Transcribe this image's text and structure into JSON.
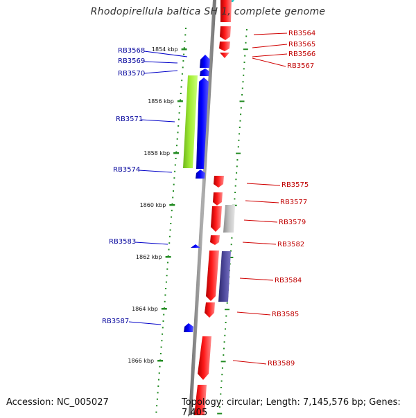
{
  "title": "Rhodopirellula baltica SH 1, complete genome",
  "footer": {
    "accession": "Accession: NC_005027",
    "summary": "Topology: circular; Length: 7,145,576 bp; Genes: 7,405"
  },
  "ruler": {
    "labels": [
      "1854 kbp",
      "1856 kbp",
      "1858 kbp",
      "1860 kbp",
      "1862 kbp",
      "1864 kbp",
      "1866 kbp"
    ]
  },
  "genes_left": [
    "RB3568",
    "RB3569",
    "RB3570",
    "RB3571",
    "RB3574",
    "RB3583",
    "RB3587"
  ],
  "genes_right": [
    "RB3564",
    "RB3565",
    "RB3566",
    "RB3567",
    "RB3575",
    "RB3577",
    "RB3579",
    "RB3582",
    "RB3584",
    "RB3585",
    "RB3589"
  ],
  "colors": {
    "reverse_strand_label": "#00009b",
    "forward_strand_label": "#c00000",
    "reverse_feature": "#0000ff",
    "forward_feature": "#ff0000",
    "lime_feature": "#9ae62a",
    "grey_feature": "#bdbdbd",
    "purple_feature": "#4b4697",
    "ruler": "#228b22",
    "backbone": "#8a8a8a"
  }
}
